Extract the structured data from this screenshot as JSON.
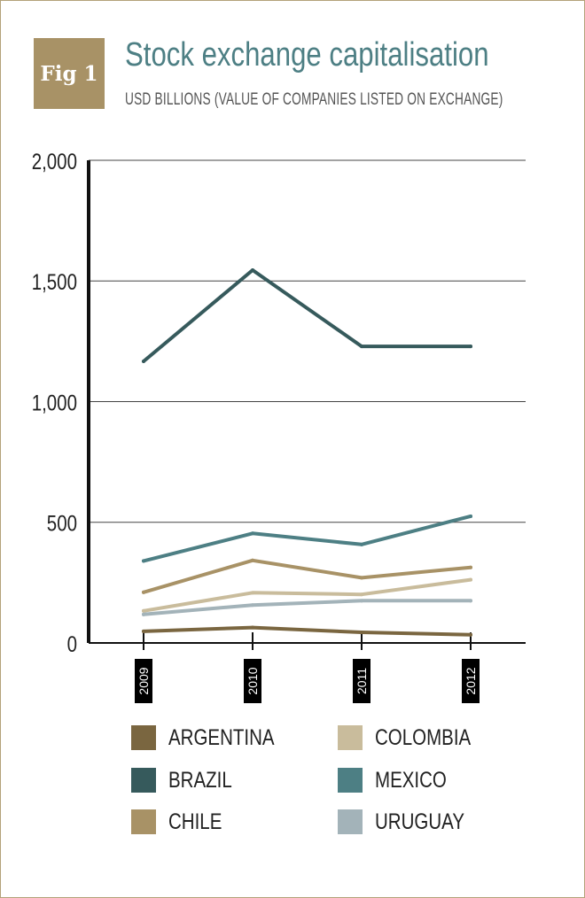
{
  "badge": {
    "label": "Fig 1"
  },
  "header": {
    "title": "Stock exchange capitalisation",
    "subtitle": "USD BILLIONS (VALUE OF COMPANIES LISTED ON EXCHANGE)"
  },
  "chart_data": {
    "type": "line",
    "title": "Stock exchange capitalisation",
    "subtitle": "USD BILLIONS (VALUE OF COMPANIES LISTED ON EXCHANGE)",
    "x": [
      "2009",
      "2010",
      "2011",
      "2012"
    ],
    "yticks": [
      "0",
      "500",
      "1,000",
      "1,500",
      "2,000"
    ],
    "ylim": [
      0,
      2000
    ],
    "grid": true,
    "legend_position": "bottom",
    "series": [
      {
        "name": "ARGENTINA",
        "color": "#7a6640",
        "values": [
          48,
          64,
          44,
          34
        ]
      },
      {
        "name": "BRAZIL",
        "color": "#365a5c",
        "values": [
          1167,
          1545,
          1229,
          1229
        ]
      },
      {
        "name": "CHILE",
        "color": "#a89266",
        "values": [
          210,
          342,
          270,
          313
        ]
      },
      {
        "name": "COLOMBIA",
        "color": "#c9bc9c",
        "values": [
          133,
          208,
          201,
          262
        ]
      },
      {
        "name": "MEXICO",
        "color": "#4d7f84",
        "values": [
          340,
          454,
          408,
          525
        ]
      },
      {
        "name": "URUGUAY",
        "color": "#a3b3b9",
        "values": [
          118,
          157,
          175,
          175
        ]
      }
    ]
  }
}
